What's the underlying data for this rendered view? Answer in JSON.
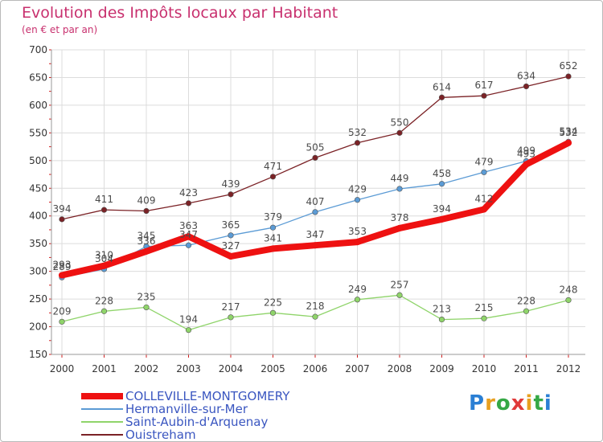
{
  "page": {
    "title": "Evolution des Impôts locaux par Habitant",
    "subtitle": "(en € et par an)",
    "brand_letters": [
      {
        "ch": "P",
        "color": "#2a7fd4"
      },
      {
        "ch": "r",
        "color": "#e8a020"
      },
      {
        "ch": "o",
        "color": "#35a845"
      },
      {
        "ch": "x",
        "color": "#e03a3a"
      },
      {
        "ch": "i",
        "color": "#e8a020"
      },
      {
        "ch": "t",
        "color": "#35a845"
      },
      {
        "ch": "i",
        "color": "#2a7fd4"
      }
    ]
  },
  "chart_data": {
    "type": "line",
    "title": "Evolution des Impôts locaux par Habitant",
    "subtitle": "(en € et par an)",
    "xlabel": "",
    "ylabel": "",
    "categories": [
      "2000",
      "2001",
      "2002",
      "2003",
      "2004",
      "2005",
      "2006",
      "2007",
      "2008",
      "2009",
      "2010",
      "2011",
      "2012"
    ],
    "ylim": [
      150,
      700
    ],
    "yticks": [
      150,
      200,
      250,
      300,
      350,
      400,
      450,
      500,
      550,
      600,
      650,
      700
    ],
    "grid": true,
    "legend_position": "bottom-left",
    "series": [
      {
        "name": "COLLEVILLE-MONTGOMERY",
        "color": "#ee1111",
        "values": [
          293,
          310,
          336,
          363,
          327,
          341,
          347,
          353,
          378,
          394,
          412,
          493,
          532
        ]
      },
      {
        "name": "Hermanville-sur-Mer",
        "color": "#5b9bd5",
        "values": [
          289,
          304,
          345,
          347,
          365,
          379,
          407,
          429,
          449,
          458,
          479,
          499,
          534
        ]
      },
      {
        "name": "Saint-Aubin-d'Arquenay",
        "color": "#8fd46a",
        "values": [
          209,
          228,
          235,
          194,
          217,
          225,
          218,
          249,
          257,
          213,
          215,
          228,
          248
        ]
      },
      {
        "name": "Ouistreham",
        "color": "#7b2226",
        "values": [
          394,
          411,
          409,
          423,
          439,
          471,
          505,
          532,
          550,
          614,
          617,
          634,
          652
        ]
      }
    ]
  }
}
